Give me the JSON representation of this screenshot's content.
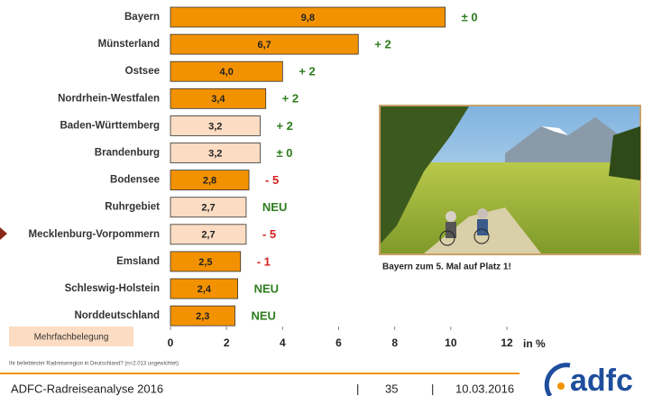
{
  "chart_data": {
    "type": "bar",
    "orientation": "horizontal",
    "categories": [
      "Bayern",
      "Münsterland",
      "Ostsee",
      "Nordrhein-Westfalen",
      "Baden-Württemberg",
      "Brandenburg",
      "Bodensee",
      "Ruhrgebiet",
      "Mecklenburg-Vorpommern",
      "Emsland",
      "Schleswig-Holstein",
      "Norddeutschland"
    ],
    "values": [
      9.8,
      6.7,
      4.0,
      3.4,
      3.2,
      3.2,
      2.8,
      2.7,
      2.7,
      2.5,
      2.4,
      2.3
    ],
    "value_labels": [
      "9,8",
      "6,7",
      "4,0",
      "3,4",
      "3,2",
      "3,2",
      "2,8",
      "2,7",
      "2,7",
      "2,5",
      "2,4",
      "2,3"
    ],
    "colors": [
      "#f39200",
      "#f39200",
      "#f39200",
      "#f39200",
      "#fcdcc2",
      "#fcdcc2",
      "#f39200",
      "#fcdcc2",
      "#fcdcc2",
      "#f39200",
      "#f39200",
      "#f39200"
    ],
    "changes": [
      "± 0",
      "+ 2",
      "+ 2",
      "+ 2",
      "+ 2",
      "± 0",
      "- 5",
      "NEU",
      "- 5",
      "- 1",
      "NEU",
      "NEU"
    ],
    "change_colors": [
      "#2e7d1e",
      "#2e7d1e",
      "#2e7d1e",
      "#2e7d1e",
      "#2e7d1e",
      "#2e7d1e",
      "#d42020",
      "#2e7d1e",
      "#d42020",
      "#d42020",
      "#2e7d1e",
      "#2e7d1e"
    ],
    "xlim": [
      0,
      12
    ],
    "xticks": [
      0,
      2,
      4,
      6,
      8,
      10,
      12
    ],
    "xlabel": "in %",
    "legend_note": "Mehrfachbelegung",
    "footnote": "Ihr beliebtester Radreiseregion in Deutschland? (n=2.013 ungewichtet)",
    "image_caption": "Bayern zum 5. Mal auf Platz 1!"
  },
  "footer": {
    "title": "ADFC-Radreiseanalyse 2016",
    "page": "35",
    "date": "10.03.2016",
    "logo": "adfc"
  }
}
